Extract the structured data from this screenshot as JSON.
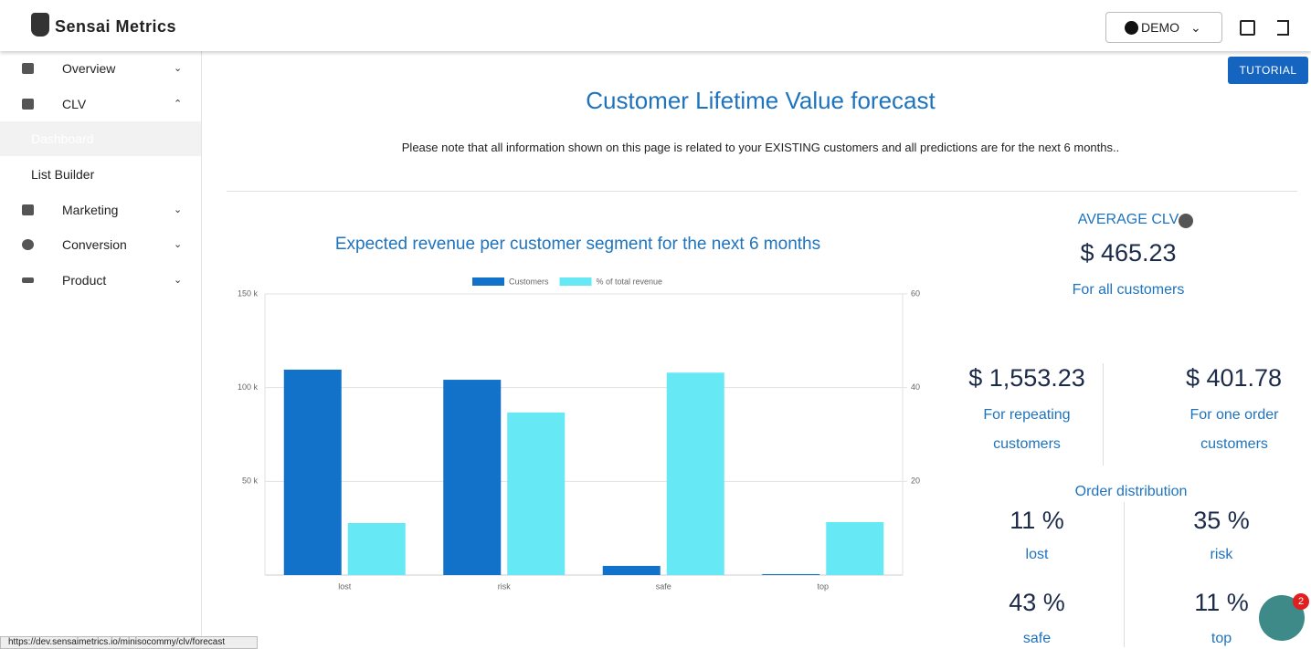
{
  "header": {
    "brand": "Sensai Metrics",
    "user": "DEMO"
  },
  "sidebar": {
    "items": [
      {
        "label": "Overview"
      },
      {
        "label": "CLV"
      },
      {
        "label": "Dashboard"
      },
      {
        "label": "List Builder"
      },
      {
        "label": "Marketing"
      },
      {
        "label": "Conversion"
      },
      {
        "label": "Product"
      }
    ]
  },
  "tutorial": "TUTORIAL",
  "page_title": "Customer Lifetime Value forecast",
  "note": "Please note that all information shown on this page is related to your EXISTING customers and all predictions are for the next 6 months..",
  "chart_data": {
    "type": "bar",
    "title": "Expected revenue per customer segment for the next 6 months",
    "categories": [
      "lost",
      "risk",
      "safe",
      "top"
    ],
    "series": [
      {
        "name": "Customers",
        "color": "#1272c9",
        "values": [
          109600,
          104200,
          4900,
          500
        ]
      },
      {
        "name": "% of total revenue",
        "color": "#66e8f5",
        "axis": "y2",
        "values": [
          11.1,
          34.7,
          43.2,
          11.3
        ]
      }
    ],
    "ylim": [
      0,
      150000
    ],
    "yticks": [
      {
        "value": 50000,
        "label": "50 k"
      },
      {
        "value": 100000,
        "label": "100 k"
      },
      {
        "value": 150000,
        "label": "150 k"
      }
    ],
    "y2lim": [
      0,
      60
    ],
    "y2ticks": [
      20,
      40,
      60
    ],
    "grid": true,
    "legend": "top"
  },
  "stats": {
    "average": {
      "label": "AVERAGE CLV",
      "value": "$ 465.23",
      "caption": "For all customers"
    },
    "repeating": {
      "value": "$ 1,553.23",
      "caption": "For repeating customers"
    },
    "one_order": {
      "value": "$ 401.78",
      "caption": "For one order customers"
    },
    "order_distribution": {
      "title": "Order distribution",
      "items": [
        {
          "value": "11 %",
          "label": "lost"
        },
        {
          "value": "35 %",
          "label": "risk"
        },
        {
          "value": "43 %",
          "label": "safe"
        },
        {
          "value": "11 %",
          "label": "top"
        }
      ]
    }
  },
  "chat_badge": "2",
  "status_url": "https://dev.sensaimetrics.io/minisocommy/clv/forecast"
}
